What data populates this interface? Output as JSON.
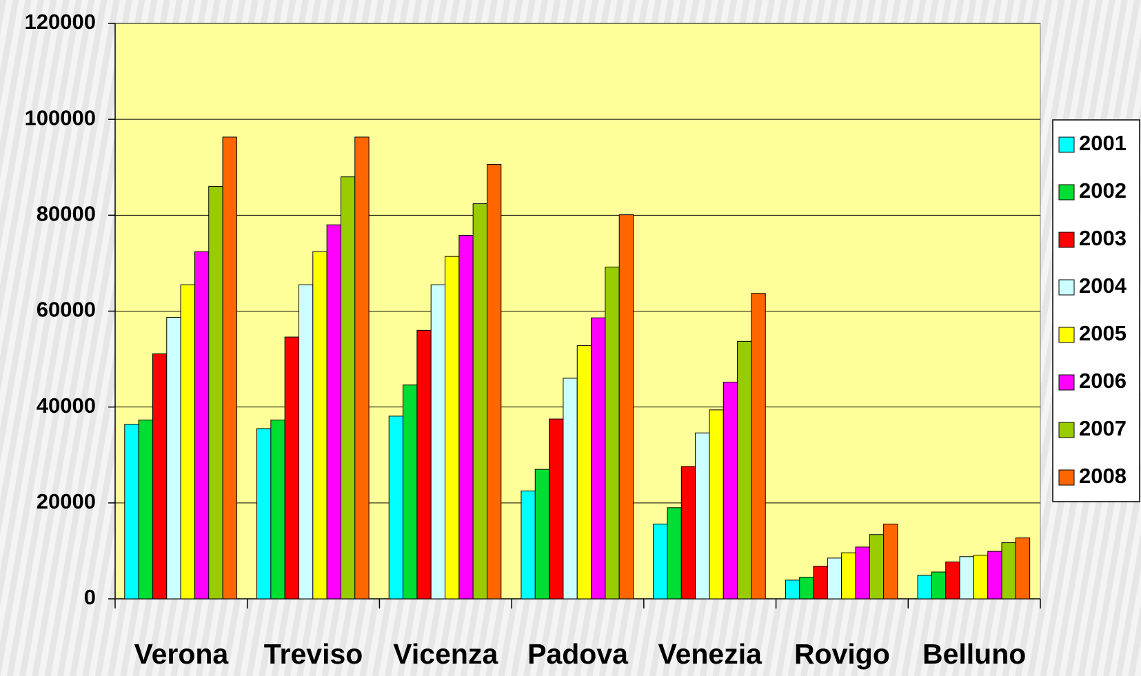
{
  "chart_data": {
    "type": "bar",
    "categories": [
      "Verona",
      "Treviso",
      "Vicenza",
      "Padova",
      "Venezia",
      "Rovigo",
      "Belluno"
    ],
    "series": [
      {
        "name": "2001",
        "color": "#00ffff",
        "values": [
          36400,
          35500,
          38100,
          22500,
          15600,
          3900,
          4900
        ]
      },
      {
        "name": "2002",
        "color": "#00dd33",
        "values": [
          37300,
          37300,
          44600,
          27000,
          19000,
          4500,
          5600
        ]
      },
      {
        "name": "2003",
        "color": "#ff0000",
        "values": [
          51100,
          54600,
          56000,
          37500,
          27600,
          6800,
          7700
        ]
      },
      {
        "name": "2004",
        "color": "#ccffff",
        "values": [
          58700,
          65500,
          65500,
          46000,
          34600,
          8500,
          8800
        ]
      },
      {
        "name": "2005",
        "color": "#ffff00",
        "values": [
          65500,
          72400,
          71400,
          52800,
          39400,
          9600,
          9100
        ]
      },
      {
        "name": "2006",
        "color": "#ff00ff",
        "values": [
          72400,
          78000,
          75800,
          58600,
          45200,
          10800,
          9900
        ]
      },
      {
        "name": "2007",
        "color": "#99cc00",
        "values": [
          86000,
          88000,
          82400,
          69200,
          53700,
          13400,
          11700
        ]
      },
      {
        "name": "2008",
        "color": "#ff6600",
        "values": [
          96300,
          96300,
          90600,
          80100,
          63700,
          15600,
          12700
        ]
      }
    ],
    "ylim": [
      0,
      120000
    ],
    "yticks": [
      0,
      20000,
      40000,
      60000,
      80000,
      100000,
      120000
    ],
    "grid": true,
    "legend": "right",
    "plot_color": "#ffff99"
  }
}
